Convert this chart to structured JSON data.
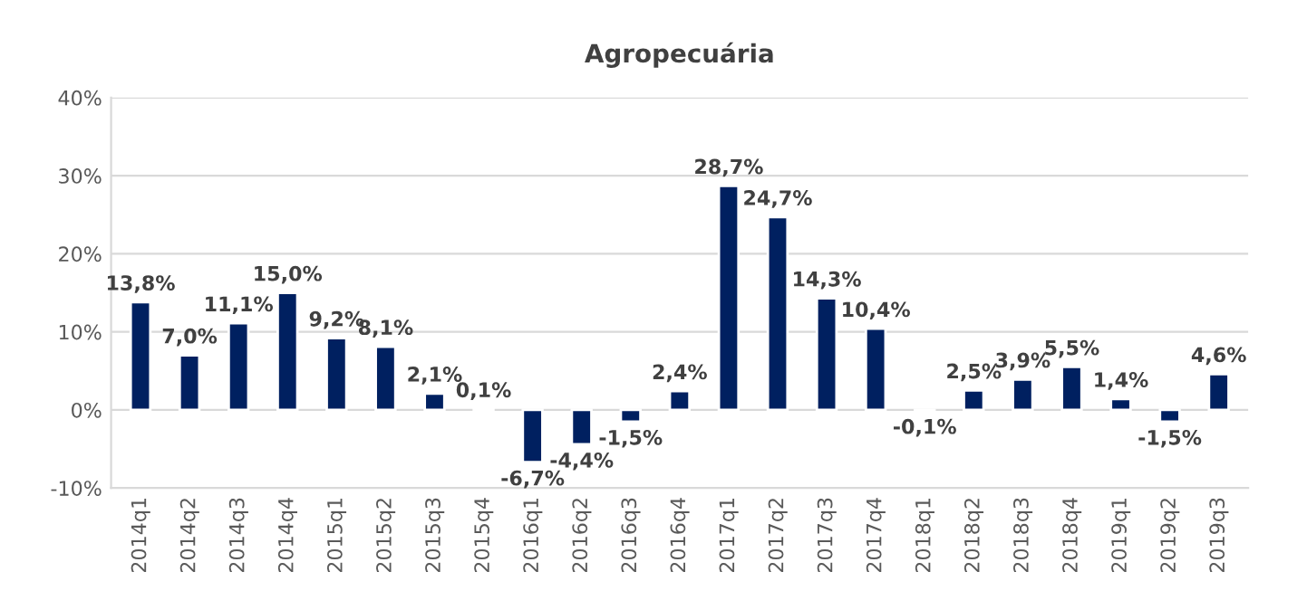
{
  "chart_data": {
    "type": "bar",
    "title": "Agropecuária",
    "categories": [
      "2014q1",
      "2014q2",
      "2014q3",
      "2014q4",
      "2015q1",
      "2015q2",
      "2015q3",
      "2015q4",
      "2016q1",
      "2016q2",
      "2016q3",
      "2016q4",
      "2017q1",
      "2017q2",
      "2017q3",
      "2017q4",
      "2018q1",
      "2018q2",
      "2018q3",
      "2018q4",
      "2019q1",
      "2019q2",
      "2019q3"
    ],
    "values": [
      13.8,
      7.0,
      11.1,
      15.0,
      9.2,
      8.1,
      2.1,
      0.1,
      -6.7,
      -4.4,
      -1.5,
      2.4,
      28.7,
      24.7,
      14.3,
      10.4,
      -0.1,
      2.5,
      3.9,
      5.5,
      1.4,
      -1.5,
      4.6
    ],
    "value_labels": [
      "13,8%",
      "7,0%",
      "11,1%",
      "15,0%",
      "9,2%",
      "8,1%",
      "2,1%",
      "0,1%",
      "-6,7%",
      "-4,4%",
      "-1,5%",
      "2,4%",
      "28,7%",
      "24,7%",
      "14,3%",
      "10,4%",
      "-0,1%",
      "2,5%",
      "3,9%",
      "5,5%",
      "1,4%",
      "-1,5%",
      "4,6%"
    ],
    "color": "#002060",
    "ylim": [
      -10,
      40
    ],
    "yticks": [
      {
        "value": -10,
        "label": "-10%"
      },
      {
        "value": 0,
        "label": "0%"
      },
      {
        "value": 10,
        "label": "10%"
      },
      {
        "value": 20,
        "label": "20%"
      },
      {
        "value": 30,
        "label": "30%"
      },
      {
        "value": 40,
        "label": "40%"
      }
    ],
    "grid": "y",
    "legend": false
  }
}
